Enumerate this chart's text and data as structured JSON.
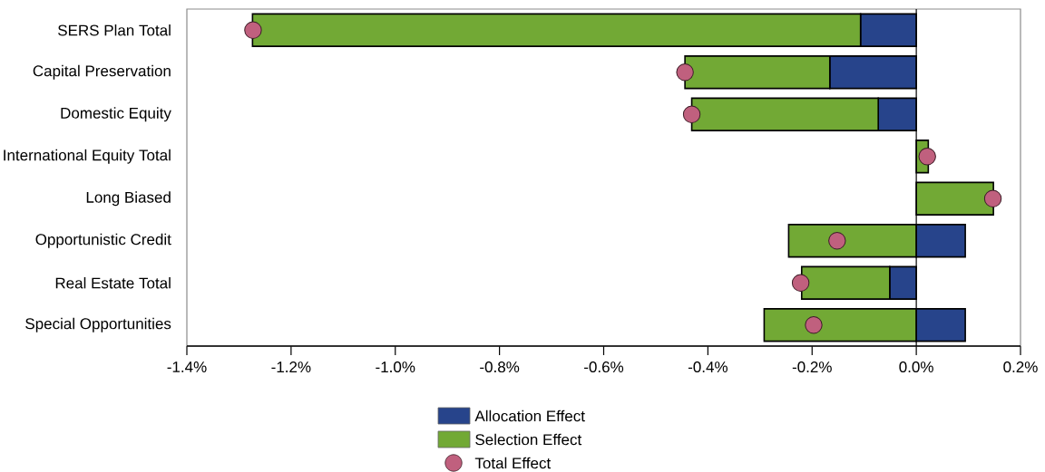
{
  "chart_data": {
    "type": "bar",
    "orientation": "horizontal",
    "stacked": true,
    "categories": [
      "SERS Plan Total",
      "Capital Preservation",
      "Domestic Equity",
      "International Equity Total",
      "Long Biased",
      "Opportunistic Credit",
      "Real Estate Total",
      "Special Opportunities"
    ],
    "series": [
      {
        "name": "Allocation Effect",
        "color": "#27448b",
        "values": [
          -0.107,
          -0.166,
          -0.073,
          0,
          0,
          0.094,
          -0.051,
          0.094
        ]
      },
      {
        "name": "Selection Effect",
        "color": "#72a935",
        "values": [
          -1.167,
          -0.278,
          -0.358,
          0.023,
          0.148,
          -0.245,
          -0.169,
          -0.292
        ]
      },
      {
        "name": "Total Effect",
        "type": "scatter",
        "marker": "circle",
        "color": "#c0607e",
        "x": [
          "SERS Plan Total",
          "Capital Preservation",
          "Domestic Equity",
          "International Equity Total",
          "Long Biased",
          "Opportunistic Credit",
          "Real Estate Total",
          "Special Opportunities"
        ],
        "values": [
          -1.273,
          -0.444,
          -0.431,
          0.021,
          0.147,
          -0.152,
          -0.222,
          -0.197
        ]
      }
    ],
    "xlim": [
      -1.4,
      0.2
    ],
    "xticks": [
      {
        "value": -1.4,
        "label": "-1.4%"
      },
      {
        "value": -1.2,
        "label": "-1.2%"
      },
      {
        "value": -1.0,
        "label": "-1.0%"
      },
      {
        "value": -0.8,
        "label": "-0.8%"
      },
      {
        "value": -0.6,
        "label": "-0.6%"
      },
      {
        "value": -0.4,
        "label": "-0.4%"
      },
      {
        "value": -0.2,
        "label": "-0.2%"
      },
      {
        "value": 0.0,
        "label": "0.0%"
      },
      {
        "value": 0.2,
        "label": "0.2%"
      }
    ],
    "ref_lines": [
      {
        "axis": "x",
        "value": 0,
        "color": "#000000"
      }
    ],
    "grid": false,
    "legend": "bottom"
  }
}
